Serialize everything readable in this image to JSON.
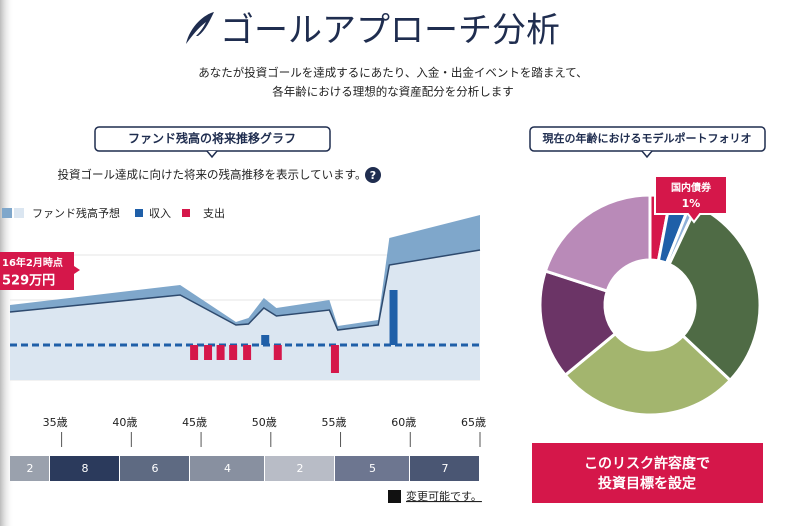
{
  "header": {
    "title": "ゴールアプローチ分析",
    "description": [
      "あなたが投資ゴールを達成するにあたり、入金・出金イベントを踏まえて、",
      "各年齢における理想的な資産配分を分析します"
    ]
  },
  "fund_chart": {
    "type": "area",
    "title": "ファンド残高の将来推移グラフ",
    "subtitle": "投資ゴール達成に向けた将来の残高推移を表示しています。",
    "help": "?",
    "xlim": [
      31.3,
      65
    ],
    "ylim": [
      -35,
      140
    ],
    "xticks": [
      {
        "value": 35,
        "label": "35歳"
      },
      {
        "value": 40,
        "label": "40歳"
      },
      {
        "value": 45,
        "label": "45歳"
      },
      {
        "value": 50,
        "label": "50歳"
      },
      {
        "value": 55,
        "label": "55歳"
      },
      {
        "value": 60,
        "label": "60歳"
      },
      {
        "value": 65,
        "label": "65歳"
      }
    ],
    "forecast": {
      "name": "ファンド残高予想",
      "color": "#7fa7cb",
      "fill": "#dbe6f1",
      "line": "#2e4a6e",
      "x": [
        31.3,
        43.5,
        47.5,
        48.4,
        49.5,
        50.4,
        54.2,
        54.8,
        57.7,
        58.5,
        65
      ],
      "upper": [
        40,
        60,
        23,
        27,
        47,
        37,
        45,
        19,
        25,
        107,
        130
      ],
      "lower": [
        33,
        50,
        20,
        21,
        37,
        29,
        35,
        15,
        20,
        80,
        95
      ]
    },
    "income": {
      "name": "収入",
      "color": "#1f5fa8",
      "x": [
        49.6,
        58.8
      ],
      "values": [
        10,
        55
      ]
    },
    "expense": {
      "name": "支出",
      "color": "#d5174a",
      "x": [
        44.5,
        45.5,
        46.4,
        47.3,
        48.3,
        50.5,
        54.6
      ],
      "values": [
        -15,
        -15,
        -15,
        -15,
        -15,
        -15,
        -28
      ]
    },
    "callout": {
      "date": "16年2月時点",
      "amount": "529万円"
    }
  },
  "risk_scale": {
    "levels": [
      2,
      8,
      6,
      4,
      2,
      5,
      7
    ],
    "colors": [
      "#9aa1ad",
      "#2b3a5c",
      "#5e6a82",
      "#8890a0",
      "#b8bcc6",
      "#6d7690",
      "#4a5673"
    ],
    "edit": "変更可能です。"
  },
  "portfolio": {
    "type": "pie",
    "title": "現在の年齢におけるモデルポートフォリオ",
    "values": [
      3,
      3,
      1,
      30,
      27,
      16,
      20
    ],
    "colors": [
      "#d5174a",
      "#1f5fa8",
      "#8fb0d8",
      "#4f6b45",
      "#a3b56e",
      "#6b3466",
      "#b98ab8"
    ],
    "tooltip": {
      "label": "国内債券",
      "value": 1,
      "value_label": "1%"
    },
    "button": [
      "このリスク許容度で",
      "投資目標を設定"
    ]
  }
}
